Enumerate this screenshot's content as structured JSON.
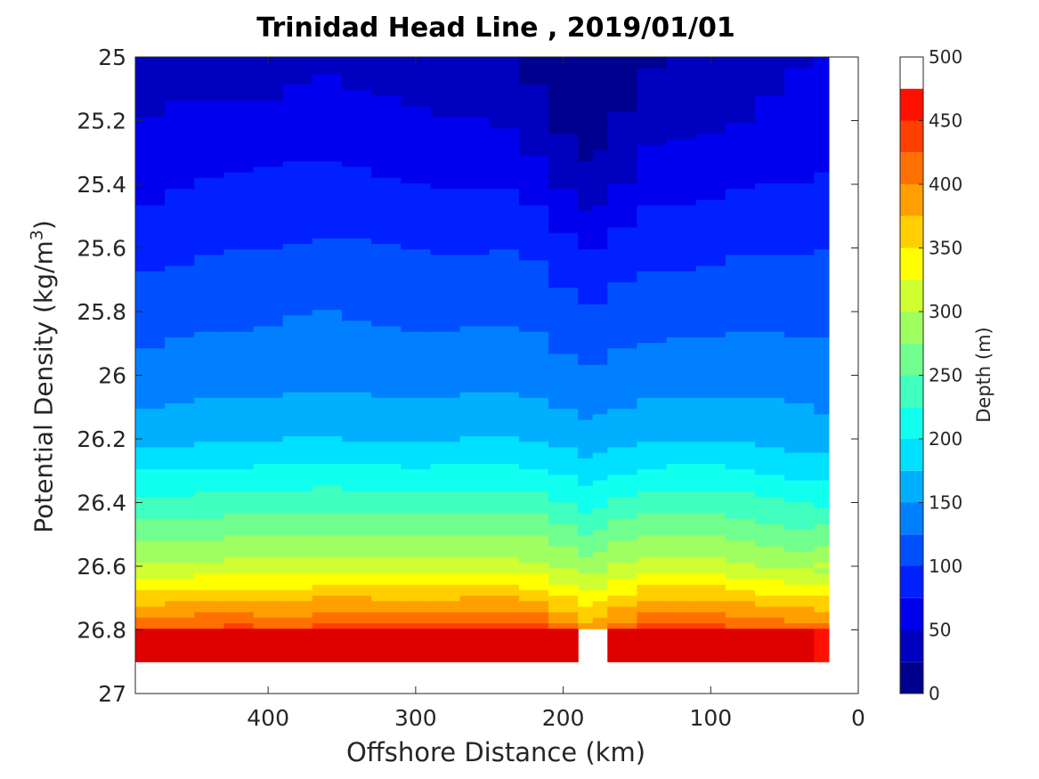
{
  "chart_data": {
    "type": "heatmap",
    "subtype": "filled-contour",
    "title": "Trinidad Head Line , 2019/01/01",
    "xlabel": "Offshore Distance (km)",
    "ylabel": {
      "base": "Potential Density (kg/m",
      "sup": "3",
      "close": ")"
    },
    "colorbar_label": "Depth (m)",
    "x_axis": {
      "range": [
        490,
        0
      ],
      "reversed": true,
      "ticks": [
        400,
        300,
        200,
        100,
        0
      ],
      "tick_labels": [
        "400",
        "300",
        "200",
        "100",
        "0"
      ]
    },
    "y_axis": {
      "range": [
        25,
        27
      ],
      "reversed": true,
      "ticks": [
        25,
        25.2,
        25.4,
        25.6,
        25.8,
        26,
        26.2,
        26.4,
        26.6,
        26.8,
        27
      ],
      "tick_labels": [
        "25",
        "25.2",
        "25.4",
        "25.6",
        "25.8",
        "26",
        "26.2",
        "26.4",
        "26.6",
        "26.8",
        "27"
      ]
    },
    "colorbar": {
      "range": [
        0,
        500
      ],
      "ticks": [
        0,
        50,
        100,
        150,
        200,
        250,
        300,
        350,
        400,
        450,
        500
      ],
      "tick_labels": [
        "0",
        "50",
        "100",
        "150",
        "200",
        "250",
        "300",
        "350",
        "400",
        "450",
        "500"
      ]
    },
    "contour_levels": [
      25,
      50,
      75,
      100,
      125,
      150,
      175,
      200,
      225,
      250,
      275,
      300,
      325,
      350,
      375,
      400,
      425,
      450,
      475
    ],
    "level_colors": [
      "#00008f",
      "#0000bf",
      "#0000ef",
      "#0020ff",
      "#0050ff",
      "#0080ff",
      "#00b0ff",
      "#00e0ff",
      "#10ffef",
      "#40ffbf",
      "#70ff8f",
      "#9fff60",
      "#cfff30",
      "#ffff00",
      "#ffcf00",
      "#ff9f00",
      "#ff7000",
      "#ff4000",
      "#ff1000",
      "#df0000",
      "#af0000"
    ],
    "isopycnal_depth_profiles": {
      "x": [
        490,
        470,
        450,
        430,
        410,
        390,
        370,
        350,
        330,
        310,
        290,
        270,
        250,
        230,
        210,
        190,
        180,
        170,
        150,
        130,
        110,
        90,
        70,
        50,
        30,
        20
      ],
      "series": [
        {
          "density": 25.0,
          "depth": [
            20,
            30,
            35,
            30,
            30,
            35,
            50,
            40,
            38,
            38,
            38,
            36,
            32,
            22,
            18,
            10,
            8,
            12,
            18,
            24,
            30,
            36,
            42,
            46,
            52,
            55
          ]
        },
        {
          "density": 25.2,
          "depth": [
            50,
            55,
            58,
            60,
            60,
            58,
            64,
            60,
            58,
            56,
            52,
            50,
            52,
            40,
            25,
            15,
            12,
            18,
            35,
            45,
            40,
            48,
            52,
            55,
            58,
            62
          ]
        },
        {
          "density": 25.4,
          "depth": [
            66,
            70,
            76,
            78,
            80,
            80,
            84,
            82,
            80,
            76,
            74,
            72,
            76,
            72,
            58,
            35,
            30,
            40,
            62,
            70,
            65,
            72,
            76,
            74,
            76,
            80
          ]
        },
        {
          "density": 25.6,
          "depth": [
            90,
            92,
            96,
            98,
            100,
            100,
            104,
            104,
            102,
            100,
            98,
            96,
            100,
            98,
            92,
            78,
            70,
            80,
            90,
            94,
            90,
            96,
            98,
            96,
            98,
            100
          ]
        },
        {
          "density": 25.8,
          "depth": [
            112,
            116,
            118,
            120,
            120,
            122,
            126,
            124,
            122,
            120,
            118,
            118,
            122,
            120,
            116,
            104,
            100,
            108,
            114,
            116,
            114,
            118,
            120,
            118,
            118,
            116
          ]
        },
        {
          "density": 26.0,
          "depth": [
            132,
            134,
            136,
            138,
            138,
            140,
            142,
            142,
            140,
            138,
            138,
            140,
            142,
            140,
            138,
            130,
            128,
            132,
            136,
            138,
            138,
            140,
            140,
            138,
            136,
            134
          ]
        },
        {
          "density": 26.2,
          "depth": [
            165,
            168,
            170,
            172,
            172,
            174,
            176,
            175,
            173,
            172,
            172,
            174,
            176,
            174,
            170,
            160,
            158,
            164,
            170,
            172,
            172,
            172,
            170,
            166,
            162,
            160
          ]
        },
        {
          "density": 26.4,
          "depth": [
            230,
            232,
            234,
            236,
            236,
            238,
            240,
            240,
            238,
            236,
            236,
            238,
            240,
            238,
            232,
            218,
            214,
            224,
            234,
            238,
            238,
            236,
            232,
            226,
            220,
            216
          ]
        },
        {
          "density": 26.6,
          "depth": [
            300,
            302,
            304,
            306,
            308,
            310,
            312,
            312,
            310,
            308,
            308,
            310,
            312,
            310,
            304,
            290,
            286,
            296,
            306,
            310,
            310,
            306,
            300,
            294,
            288,
            null
          ]
        },
        {
          "density": 26.8,
          "depth": [
            420,
            425,
            428,
            432,
            434,
            null,
            440,
            440,
            438,
            436,
            436,
            438,
            440,
            438,
            430,
            null,
            null,
            null,
            432,
            436,
            436,
            432,
            426,
            420,
            414,
            null
          ]
        }
      ]
    },
    "no_data_regions": [
      "density below 26.85 beyond the deepest measurements",
      "gaps near 385 km, 150-210 km and right of 20 km (nearshore)"
    ]
  }
}
